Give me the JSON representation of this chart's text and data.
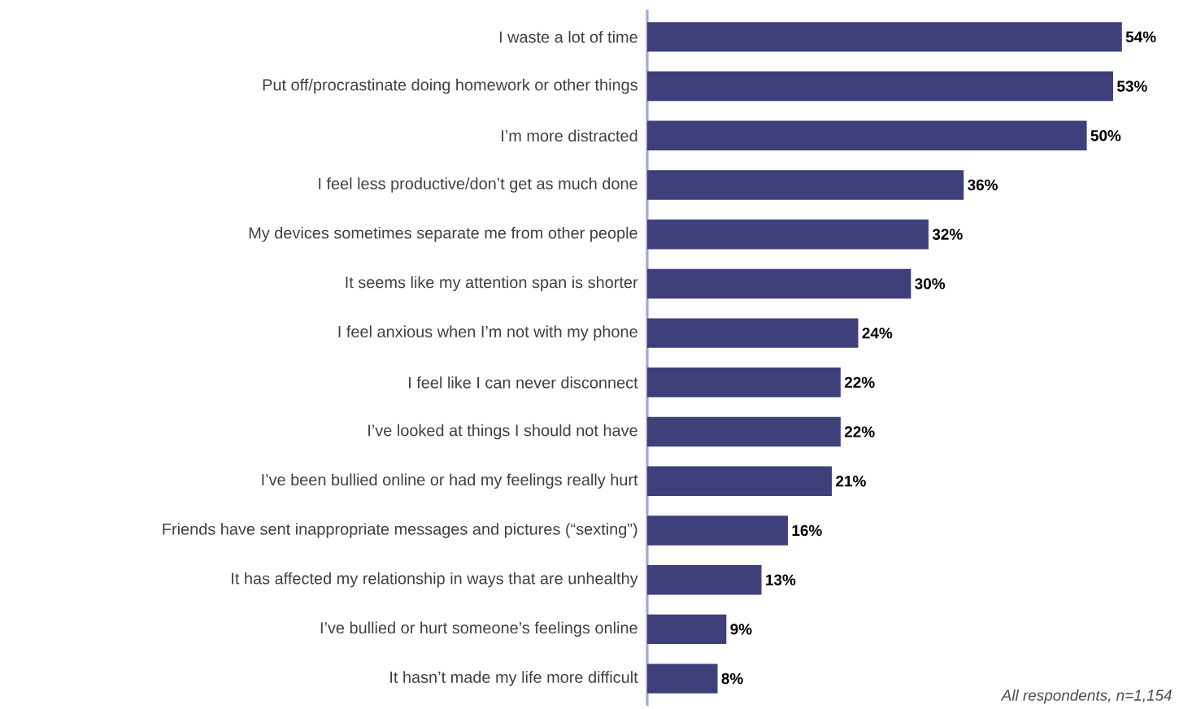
{
  "chart_data": {
    "type": "bar",
    "orientation": "horizontal",
    "categories": [
      "I waste a lot of time",
      "Put off/procrastinate doing homework or other things",
      "I’m more distracted",
      "I feel less productive/don’t get as much done",
      "My devices sometimes separate me from other people",
      "It seems like my attention span is shorter",
      "I feel anxious when I’m not with my phone",
      "I feel like I can never disconnect",
      "I’ve looked at things I should not have",
      "I’ve been bullied online or had my feelings really hurt",
      "Friends have sent inappropriate messages and pictures (“sexting”)",
      "It has affected my relationship in ways that are unhealthy",
      "I’ve bullied or hurt someone’s feelings online",
      "It hasn’t made my life more difficult"
    ],
    "values": [
      54,
      53,
      50,
      36,
      32,
      30,
      24,
      22,
      22,
      21,
      16,
      13,
      9,
      8
    ],
    "value_labels": [
      "54%",
      "53%",
      "50%",
      "36%",
      "32%",
      "30%",
      "24%",
      "22%",
      "22%",
      "21%",
      "16%",
      "13%",
      "9%",
      "8%"
    ],
    "color": "#3f3f7a",
    "annotations": [
      "All respondents, n=1,154"
    ]
  }
}
